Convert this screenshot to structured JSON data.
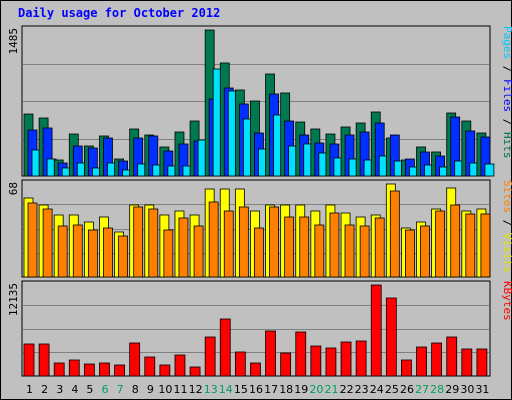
{
  "title": "Daily usage for October 2012",
  "chart_data": {
    "type": "bar",
    "title": "Daily usage for October 2012",
    "categories": [
      "1",
      "2",
      "3",
      "4",
      "5",
      "6",
      "7",
      "8",
      "9",
      "10",
      "11",
      "12",
      "13",
      "14",
      "15",
      "16",
      "17",
      "18",
      "19",
      "20",
      "21",
      "22",
      "23",
      "24",
      "25",
      "26",
      "27",
      "28",
      "29",
      "30",
      "31"
    ],
    "weekend_days": [
      "6",
      "7",
      "13",
      "14",
      "20",
      "21",
      "27",
      "28"
    ],
    "panels": [
      {
        "name": "hits-files-pages",
        "ymax_label": "1485",
        "ymax": 1485,
        "side_labels": [
          {
            "text": "Pages",
            "color": "#00c8ff"
          },
          {
            "text": " / ",
            "color": "#000000"
          },
          {
            "text": "Files",
            "color": "#0000ff"
          },
          {
            "text": " / ",
            "color": "#000000"
          },
          {
            "text": "Hits",
            "color": "#007050"
          }
        ],
        "series": [
          {
            "name": "Hits",
            "color": "#007850",
            "values": [
              630,
              590,
              160,
              430,
              310,
              410,
              170,
              480,
              420,
              290,
              450,
              560,
              1485,
              1150,
              870,
              760,
              1035,
              840,
              550,
              480,
              430,
              500,
              540,
              650,
              390,
              160,
              300,
              240,
              640,
              560,
              440
            ]
          },
          {
            "name": "Files",
            "color": "#0030ff",
            "values": [
              470,
              490,
              130,
              310,
              280,
              390,
              150,
              390,
              410,
              250,
              330,
              360,
              780,
              890,
              730,
              440,
              830,
              560,
              420,
              340,
              330,
              420,
              450,
              540,
              420,
              170,
              240,
              200,
              600,
              460,
              400
            ]
          },
          {
            "name": "Pages",
            "color": "#00e0ff",
            "values": [
              260,
              170,
              80,
              130,
              80,
              130,
              60,
              120,
              110,
              100,
              100,
              370,
              1090,
              860,
              580,
              270,
              620,
              310,
              330,
              230,
              180,
              170,
              160,
              200,
              150,
              90,
              110,
              90,
              150,
              130,
              120
            ]
          }
        ]
      },
      {
        "name": "visits-sites",
        "ymax_label": "68",
        "ymax": 68,
        "side_labels": [
          {
            "text": "Sites",
            "color": "#ff8000"
          },
          {
            "text": " / ",
            "color": "#000000"
          },
          {
            "text": "Visits",
            "color": "#e0e000"
          }
        ],
        "series": [
          {
            "name": "Visits",
            "color": "#ffff00",
            "values": [
              58,
              53,
              45,
              45,
              40,
              44,
              33,
              53,
              53,
              45,
              48,
              45,
              64,
              64,
              64,
              48,
              53,
              53,
              53,
              48,
              53,
              47,
              44,
              45,
              68,
              36,
              40,
              50,
              65,
              48,
              50
            ]
          },
          {
            "name": "Sites",
            "color": "#ff8000",
            "values": [
              54,
              50,
              37,
              38,
              34,
              36,
              30,
              51,
              50,
              34,
              43,
              37,
              55,
              48,
              51,
              36,
              51,
              44,
              44,
              38,
              47,
              38,
              37,
              43,
              63,
              34,
              37,
              48,
              53,
              46,
              46
            ]
          }
        ]
      },
      {
        "name": "kbytes",
        "ymax_label": "12135",
        "ymax": 12135,
        "side_labels": [
          {
            "text": "KBytes",
            "color": "#ff0000"
          }
        ],
        "series": [
          {
            "name": "KBytes",
            "color": "#ff0000",
            "values": [
              4280,
              4280,
              1800,
              2150,
              1620,
              1800,
              1490,
              4350,
              2500,
              1490,
              2750,
              1240,
              5260,
              7620,
              3220,
              1800,
              6050,
              3040,
              5820,
              3960,
              3790,
              4560,
              4620,
              12135,
              10350,
              2080,
              3900,
              4350,
              5260,
              3650,
              3590
            ]
          }
        ]
      }
    ]
  }
}
